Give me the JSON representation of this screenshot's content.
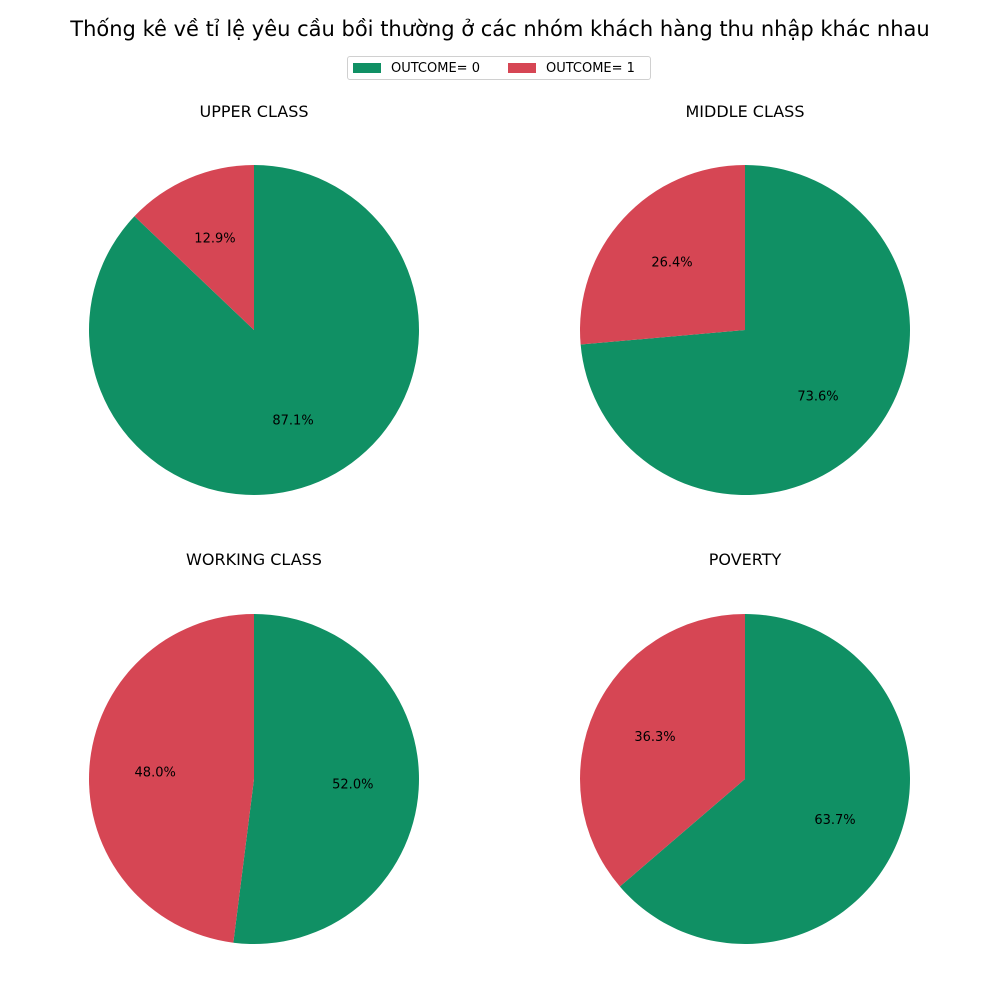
{
  "title": "Thống kê về tỉ lệ yêu cầu bồi thường ở các nhóm khách hàng thu nhập khác nhau",
  "legend": {
    "items": [
      {
        "label": "OUTCOME= 0",
        "color": "#109064"
      },
      {
        "label": "OUTCOME= 1",
        "color": "#d64654"
      }
    ],
    "placement": "upper-center"
  },
  "chart_data": [
    {
      "type": "pie",
      "title": "UPPER CLASS",
      "labels": [
        "OUTCOME= 0",
        "OUTCOME= 1"
      ],
      "values": [
        87.1,
        12.9
      ],
      "value_labels": [
        "87.1%",
        "12.9%"
      ],
      "colors": [
        "#109064",
        "#d64654"
      ]
    },
    {
      "type": "pie",
      "title": "MIDDLE CLASS",
      "labels": [
        "OUTCOME= 0",
        "OUTCOME= 1"
      ],
      "values": [
        73.6,
        26.4
      ],
      "value_labels": [
        "73.6%",
        "26.4%"
      ],
      "colors": [
        "#109064",
        "#d64654"
      ]
    },
    {
      "type": "pie",
      "title": "WORKING CLASS",
      "labels": [
        "OUTCOME= 0",
        "OUTCOME= 1"
      ],
      "values": [
        52.0,
        48.0
      ],
      "value_labels": [
        "52.0%",
        "48.0%"
      ],
      "colors": [
        "#109064",
        "#d64654"
      ]
    },
    {
      "type": "pie",
      "title": "POVERTY",
      "labels": [
        "OUTCOME= 0",
        "OUTCOME= 1"
      ],
      "values": [
        63.7,
        36.3
      ],
      "value_labels": [
        "63.7%",
        "36.3%"
      ],
      "colors": [
        "#109064",
        "#d64654"
      ]
    }
  ]
}
